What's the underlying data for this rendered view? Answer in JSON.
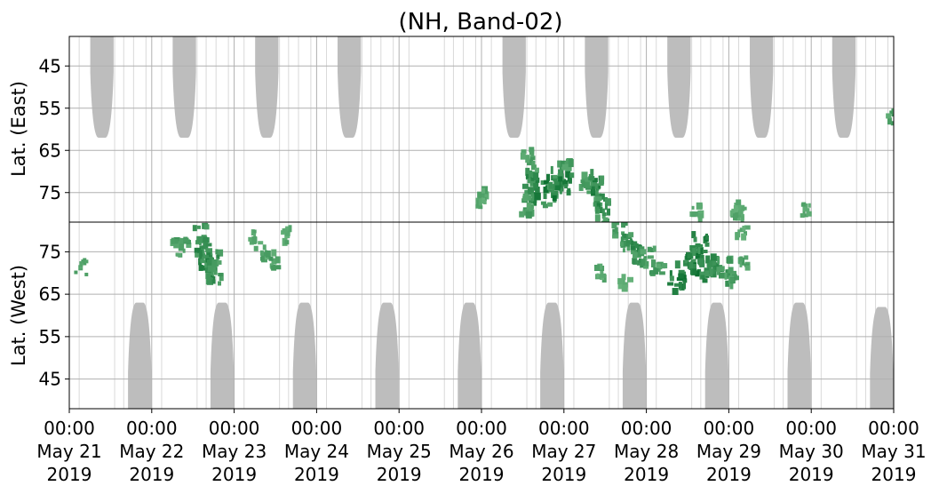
{
  "chart_data": {
    "type": "heatmap",
    "title": "(NH, Band-02)",
    "x_axis": {
      "type": "datetime",
      "range": [
        "2019-05-21T00:00",
        "2019-05-31T00:00"
      ],
      "ticks": [
        {
          "time": "00:00",
          "date": "May 21",
          "year": "2019"
        },
        {
          "time": "00:00",
          "date": "May 22",
          "year": "2019"
        },
        {
          "time": "00:00",
          "date": "May 23",
          "year": "2019"
        },
        {
          "time": "00:00",
          "date": "May 24",
          "year": "2019"
        },
        {
          "time": "00:00",
          "date": "May 25",
          "year": "2019"
        },
        {
          "time": "00:00",
          "date": "May 26",
          "year": "2019"
        },
        {
          "time": "00:00",
          "date": "May 27",
          "year": "2019"
        },
        {
          "time": "00:00",
          "date": "May 28",
          "year": "2019"
        },
        {
          "time": "00:00",
          "date": "May 29",
          "year": "2019"
        },
        {
          "time": "00:00",
          "date": "May 30",
          "year": "2019"
        },
        {
          "time": "00:00",
          "date": "May 31",
          "year": "2019"
        }
      ]
    },
    "panels": [
      {
        "name": "east",
        "ylabel": "Lat. (East)",
        "ylim": [
          38,
          82
        ],
        "y_inverted": true,
        "yticks": [
          {
            "value": 45,
            "label": "45"
          },
          {
            "value": 55,
            "label": "55"
          },
          {
            "value": 65,
            "label": "65"
          },
          {
            "value": 75,
            "label": "75"
          }
        ],
        "no_data_regions": [
          {
            "center": "2019-05-21T09:30",
            "half_width_hours": 4,
            "lat_from": 38,
            "lat_to": 62
          },
          {
            "center": "2019-05-22T09:30",
            "half_width_hours": 4,
            "lat_from": 38,
            "lat_to": 62
          },
          {
            "center": "2019-05-23T09:30",
            "half_width_hours": 4,
            "lat_from": 38,
            "lat_to": 62
          },
          {
            "center": "2019-05-24T09:30",
            "half_width_hours": 4,
            "lat_from": 38,
            "lat_to": 62
          },
          {
            "center": "2019-05-26T09:30",
            "half_width_hours": 4,
            "lat_from": 38,
            "lat_to": 62
          },
          {
            "center": "2019-05-27T09:30",
            "half_width_hours": 4,
            "lat_from": 38,
            "lat_to": 62
          },
          {
            "center": "2019-05-28T09:30",
            "half_width_hours": 4,
            "lat_from": 38,
            "lat_to": 62
          },
          {
            "center": "2019-05-29T09:30",
            "half_width_hours": 4,
            "lat_from": 38,
            "lat_to": 62
          },
          {
            "center": "2019-05-30T09:30",
            "half_width_hours": 4,
            "lat_from": 38,
            "lat_to": 62
          }
        ],
        "events": [
          {
            "t": "2019-05-26T13:30",
            "lat": 66,
            "intensity": 0.55
          },
          {
            "t": "2019-05-26T14:30",
            "lat": 70,
            "intensity": 0.6
          },
          {
            "t": "2019-05-26T15:00",
            "lat": 73,
            "intensity": 0.85
          },
          {
            "t": "2019-05-26T16:30",
            "lat": 75,
            "intensity": 0.9
          },
          {
            "t": "2019-05-26T14:00",
            "lat": 78,
            "intensity": 0.6
          },
          {
            "t": "2019-05-26T13:00",
            "lat": 79,
            "intensity": 0.55
          },
          {
            "t": "2019-05-26T20:00",
            "lat": 76,
            "intensity": 0.7
          },
          {
            "t": "2019-05-26T21:00",
            "lat": 74,
            "intensity": 0.95
          },
          {
            "t": "2019-05-26T22:00",
            "lat": 72,
            "intensity": 0.8
          },
          {
            "t": "2019-05-27T00:00",
            "lat": 73,
            "intensity": 0.9
          },
          {
            "t": "2019-05-27T00:30",
            "lat": 69,
            "intensity": 0.6
          },
          {
            "t": "2019-05-27T06:30",
            "lat": 72,
            "intensity": 0.65
          },
          {
            "t": "2019-05-27T08:30",
            "lat": 75,
            "intensity": 0.7
          },
          {
            "t": "2019-05-27T10:00",
            "lat": 74,
            "intensity": 0.9
          },
          {
            "t": "2019-05-27T11:00",
            "lat": 78,
            "intensity": 0.8
          },
          {
            "t": "2019-05-27T11:30",
            "lat": 81,
            "intensity": 0.6
          },
          {
            "t": "2019-05-26T00:30",
            "lat": 76,
            "intensity": 0.5
          },
          {
            "t": "2019-05-25T23:30",
            "lat": 77,
            "intensity": 0.45
          },
          {
            "t": "2019-05-29T03:00",
            "lat": 79,
            "intensity": 0.5
          },
          {
            "t": "2019-05-29T02:30",
            "lat": 80,
            "intensity": 0.45
          },
          {
            "t": "2019-05-29T22:00",
            "lat": 79,
            "intensity": 0.45
          },
          {
            "t": "2019-05-28T15:00",
            "lat": 80,
            "intensity": 0.5
          },
          {
            "t": "2019-05-30T23:30",
            "lat": 57,
            "intensity": 0.55
          }
        ]
      },
      {
        "name": "west",
        "ylabel": "Lat. (West)",
        "ylim": [
          38,
          82
        ],
        "y_inverted": false,
        "yticks": [
          {
            "value": 45,
            "label": "45"
          },
          {
            "value": 55,
            "label": "55"
          },
          {
            "value": 65,
            "label": "65"
          },
          {
            "value": 75,
            "label": "75"
          }
        ],
        "no_data_regions": [
          {
            "center": "2019-05-21T20:30",
            "half_width_hours": 4,
            "lat_from": 38,
            "lat_to": 63
          },
          {
            "center": "2019-05-22T20:30",
            "half_width_hours": 4,
            "lat_from": 38,
            "lat_to": 63
          },
          {
            "center": "2019-05-23T20:30",
            "half_width_hours": 4,
            "lat_from": 38,
            "lat_to": 63
          },
          {
            "center": "2019-05-24T20:30",
            "half_width_hours": 4,
            "lat_from": 38,
            "lat_to": 63
          },
          {
            "center": "2019-05-25T20:30",
            "half_width_hours": 4,
            "lat_from": 38,
            "lat_to": 63
          },
          {
            "center": "2019-05-26T20:30",
            "half_width_hours": 4,
            "lat_from": 38,
            "lat_to": 63
          },
          {
            "center": "2019-05-27T20:30",
            "half_width_hours": 4,
            "lat_from": 38,
            "lat_to": 63
          },
          {
            "center": "2019-05-28T20:30",
            "half_width_hours": 4,
            "lat_from": 38,
            "lat_to": 63
          },
          {
            "center": "2019-05-29T20:30",
            "half_width_hours": 4,
            "lat_from": 38,
            "lat_to": 63
          },
          {
            "center": "2019-05-30T20:30",
            "half_width_hours": 4,
            "lat_from": 38,
            "lat_to": 62
          }
        ],
        "events": [
          {
            "t": "2019-05-21T03:30",
            "lat": 71,
            "intensity": 0.5
          },
          {
            "t": "2019-05-22T06:30",
            "lat": 76,
            "intensity": 0.55
          },
          {
            "t": "2019-05-22T09:00",
            "lat": 76,
            "intensity": 0.55
          },
          {
            "t": "2019-05-22T14:30",
            "lat": 79,
            "intensity": 0.7
          },
          {
            "t": "2019-05-22T15:30",
            "lat": 76,
            "intensity": 0.75
          },
          {
            "t": "2019-05-22T15:00",
            "lat": 73,
            "intensity": 0.8
          },
          {
            "t": "2019-05-22T16:30",
            "lat": 71,
            "intensity": 0.85
          },
          {
            "t": "2019-05-22T18:30",
            "lat": 69,
            "intensity": 0.75
          },
          {
            "t": "2019-05-22T18:00",
            "lat": 73,
            "intensity": 0.7
          },
          {
            "t": "2019-05-23T06:00",
            "lat": 78,
            "intensity": 0.5
          },
          {
            "t": "2019-05-23T08:00",
            "lat": 75,
            "intensity": 0.5
          },
          {
            "t": "2019-05-23T11:30",
            "lat": 73,
            "intensity": 0.55
          },
          {
            "t": "2019-05-23T15:30",
            "lat": 79,
            "intensity": 0.45
          },
          {
            "t": "2019-05-27T16:30",
            "lat": 80,
            "intensity": 0.6
          },
          {
            "t": "2019-05-27T18:30",
            "lat": 77,
            "intensity": 0.7
          },
          {
            "t": "2019-05-27T20:30",
            "lat": 76,
            "intensity": 0.75
          },
          {
            "t": "2019-05-27T22:00",
            "lat": 73,
            "intensity": 0.65
          },
          {
            "t": "2019-05-28T00:30",
            "lat": 74,
            "intensity": 0.6
          },
          {
            "t": "2019-05-28T03:30",
            "lat": 71,
            "intensity": 0.6
          },
          {
            "t": "2019-05-28T09:00",
            "lat": 68,
            "intensity": 0.9
          },
          {
            "t": "2019-05-28T11:30",
            "lat": 71,
            "intensity": 0.95
          },
          {
            "t": "2019-05-28T14:00",
            "lat": 74,
            "intensity": 0.95
          },
          {
            "t": "2019-05-28T15:30",
            "lat": 77,
            "intensity": 0.9
          },
          {
            "t": "2019-05-28T16:00",
            "lat": 72,
            "intensity": 1.0
          },
          {
            "t": "2019-05-28T18:00",
            "lat": 70,
            "intensity": 0.8
          },
          {
            "t": "2019-05-28T20:30",
            "lat": 72,
            "intensity": 0.75
          },
          {
            "t": "2019-05-28T22:30",
            "lat": 71,
            "intensity": 0.7
          },
          {
            "t": "2019-05-29T00:30",
            "lat": 69,
            "intensity": 0.6
          },
          {
            "t": "2019-05-29T04:00",
            "lat": 79,
            "intensity": 0.45
          },
          {
            "t": "2019-05-29T05:00",
            "lat": 73,
            "intensity": 0.5
          },
          {
            "t": "2019-05-27T11:00",
            "lat": 70,
            "intensity": 0.45
          },
          {
            "t": "2019-05-27T18:00",
            "lat": 68,
            "intensity": 0.4
          }
        ]
      }
    ],
    "colors": {
      "no_data": "#bdbdbd",
      "event_low": "#86c995",
      "event_high": "#0a6e2e",
      "grid": "#b0b0b0",
      "axis": "#000000"
    },
    "grid": true
  }
}
